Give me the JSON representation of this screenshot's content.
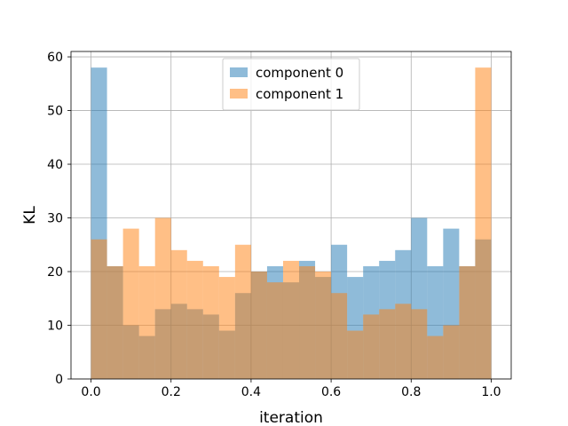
{
  "chart_data": {
    "type": "bar",
    "title": "",
    "xlabel": "iteration",
    "ylabel": "KL",
    "xlim": [
      -0.05,
      1.05
    ],
    "ylim": [
      0,
      61
    ],
    "xticks": [
      "0.0",
      "0.2",
      "0.4",
      "0.6",
      "0.8",
      "1.0"
    ],
    "yticks": [
      "0",
      "10",
      "20",
      "30",
      "40",
      "50",
      "60"
    ],
    "grid": true,
    "legend_position": "top-center",
    "bin_edges": [
      0.0,
      0.04,
      0.08,
      0.12,
      0.16,
      0.2,
      0.24,
      0.28,
      0.32,
      0.36,
      0.4,
      0.44,
      0.48,
      0.52,
      0.56,
      0.6,
      0.64,
      0.68,
      0.72,
      0.76,
      0.8,
      0.84,
      0.88,
      0.92,
      0.96,
      1.0
    ],
    "series": [
      {
        "name": "component 0",
        "color": "#1f77b4",
        "alpha": 0.5,
        "values": [
          58,
          21,
          10,
          8,
          13,
          14,
          13,
          12,
          9,
          16,
          20,
          21,
          18,
          22,
          19,
          25,
          19,
          21,
          22,
          24,
          30,
          21,
          28,
          21,
          26
        ]
      },
      {
        "name": "component 1",
        "color": "#ff7f0e",
        "alpha": 0.5,
        "values": [
          26,
          21,
          28,
          21,
          30,
          24,
          22,
          21,
          19,
          25,
          20,
          18,
          22,
          21,
          20,
          16,
          9,
          12,
          13,
          14,
          13,
          8,
          10,
          21,
          58
        ]
      }
    ]
  }
}
